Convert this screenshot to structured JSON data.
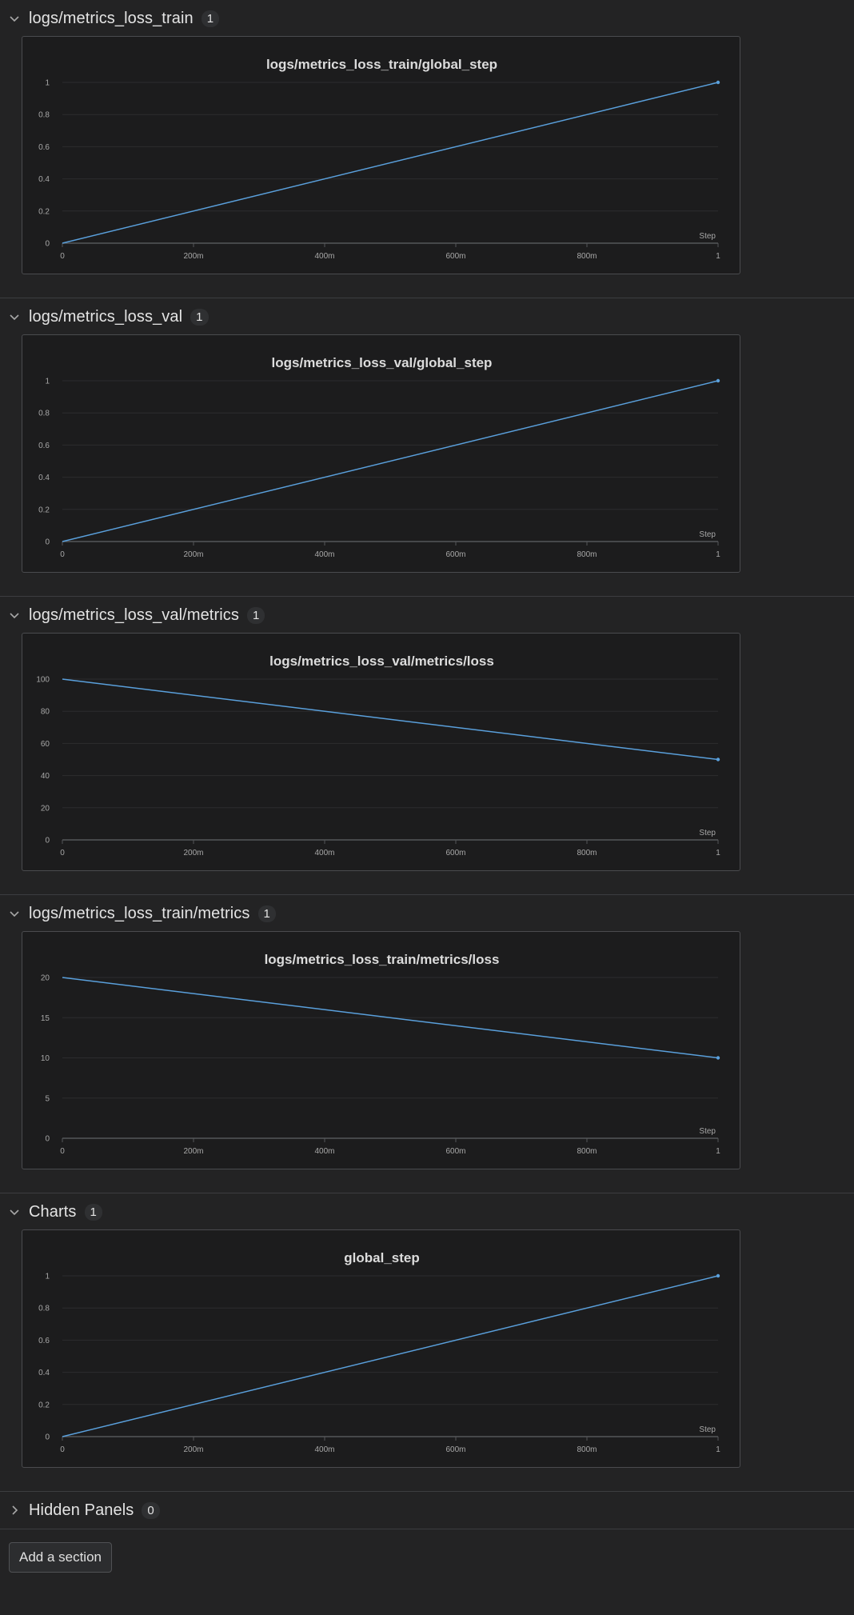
{
  "colors": {
    "line": "#5aa0dc",
    "grid": "#2c2c2e",
    "axis": "#555659"
  },
  "sections": [
    {
      "title": "logs/metrics_loss_train",
      "count": "1",
      "chart_data": {
        "type": "line",
        "title": "logs/metrics_loss_train/global_step",
        "xlabel": "Step",
        "ylabel": "",
        "x": [
          0,
          1
        ],
        "y": [
          0,
          1
        ],
        "xlim": [
          0,
          1
        ],
        "ylim": [
          0,
          1
        ],
        "xticks": [
          0,
          0.2,
          0.4,
          0.6,
          0.8,
          1
        ],
        "xtick_labels": [
          "0",
          "200m",
          "400m",
          "600m",
          "800m",
          "1"
        ],
        "yticks": [
          0,
          0.2,
          0.4,
          0.6,
          0.8,
          1
        ],
        "ytick_labels": [
          "0",
          "0.2",
          "0.4",
          "0.6",
          "0.8",
          "1"
        ],
        "grid": true
      }
    },
    {
      "title": "logs/metrics_loss_val",
      "count": "1",
      "chart_data": {
        "type": "line",
        "title": "logs/metrics_loss_val/global_step",
        "xlabel": "Step",
        "ylabel": "",
        "x": [
          0,
          1
        ],
        "y": [
          0,
          1
        ],
        "xlim": [
          0,
          1
        ],
        "ylim": [
          0,
          1
        ],
        "xticks": [
          0,
          0.2,
          0.4,
          0.6,
          0.8,
          1
        ],
        "xtick_labels": [
          "0",
          "200m",
          "400m",
          "600m",
          "800m",
          "1"
        ],
        "yticks": [
          0,
          0.2,
          0.4,
          0.6,
          0.8,
          1
        ],
        "ytick_labels": [
          "0",
          "0.2",
          "0.4",
          "0.6",
          "0.8",
          "1"
        ],
        "grid": true
      }
    },
    {
      "title": "logs/metrics_loss_val/metrics",
      "count": "1",
      "chart_data": {
        "type": "line",
        "title": "logs/metrics_loss_val/metrics/loss",
        "xlabel": "Step",
        "ylabel": "",
        "x": [
          0,
          1
        ],
        "y": [
          100,
          50
        ],
        "xlim": [
          0,
          1
        ],
        "ylim": [
          0,
          100
        ],
        "xticks": [
          0,
          0.2,
          0.4,
          0.6,
          0.8,
          1
        ],
        "xtick_labels": [
          "0",
          "200m",
          "400m",
          "600m",
          "800m",
          "1"
        ],
        "yticks": [
          0,
          20,
          40,
          60,
          80,
          100
        ],
        "ytick_labels": [
          "0",
          "20",
          "40",
          "60",
          "80",
          "100"
        ],
        "grid": true
      }
    },
    {
      "title": "logs/metrics_loss_train/metrics",
      "count": "1",
      "chart_data": {
        "type": "line",
        "title": "logs/metrics_loss_train/metrics/loss",
        "xlabel": "Step",
        "ylabel": "",
        "x": [
          0,
          1
        ],
        "y": [
          20,
          10
        ],
        "xlim": [
          0,
          1
        ],
        "ylim": [
          0,
          20
        ],
        "xticks": [
          0,
          0.2,
          0.4,
          0.6,
          0.8,
          1
        ],
        "xtick_labels": [
          "0",
          "200m",
          "400m",
          "600m",
          "800m",
          "1"
        ],
        "yticks": [
          0,
          5,
          10,
          15,
          20
        ],
        "ytick_labels": [
          "0",
          "5",
          "10",
          "15",
          "20"
        ],
        "grid": true
      }
    },
    {
      "title": "Charts",
      "count": "1",
      "chart_data": {
        "type": "line",
        "title": "global_step",
        "xlabel": "Step",
        "ylabel": "",
        "x": [
          0,
          1
        ],
        "y": [
          0,
          1
        ],
        "xlim": [
          0,
          1
        ],
        "ylim": [
          0,
          1
        ],
        "xticks": [
          0,
          0.2,
          0.4,
          0.6,
          0.8,
          1
        ],
        "xtick_labels": [
          "0",
          "200m",
          "400m",
          "600m",
          "800m",
          "1"
        ],
        "yticks": [
          0,
          0.2,
          0.4,
          0.6,
          0.8,
          1
        ],
        "ytick_labels": [
          "0",
          "0.2",
          "0.4",
          "0.6",
          "0.8",
          "1"
        ],
        "grid": true
      }
    }
  ],
  "hidden_panels": {
    "title": "Hidden Panels",
    "count": "0"
  },
  "add_section_label": "Add a section"
}
